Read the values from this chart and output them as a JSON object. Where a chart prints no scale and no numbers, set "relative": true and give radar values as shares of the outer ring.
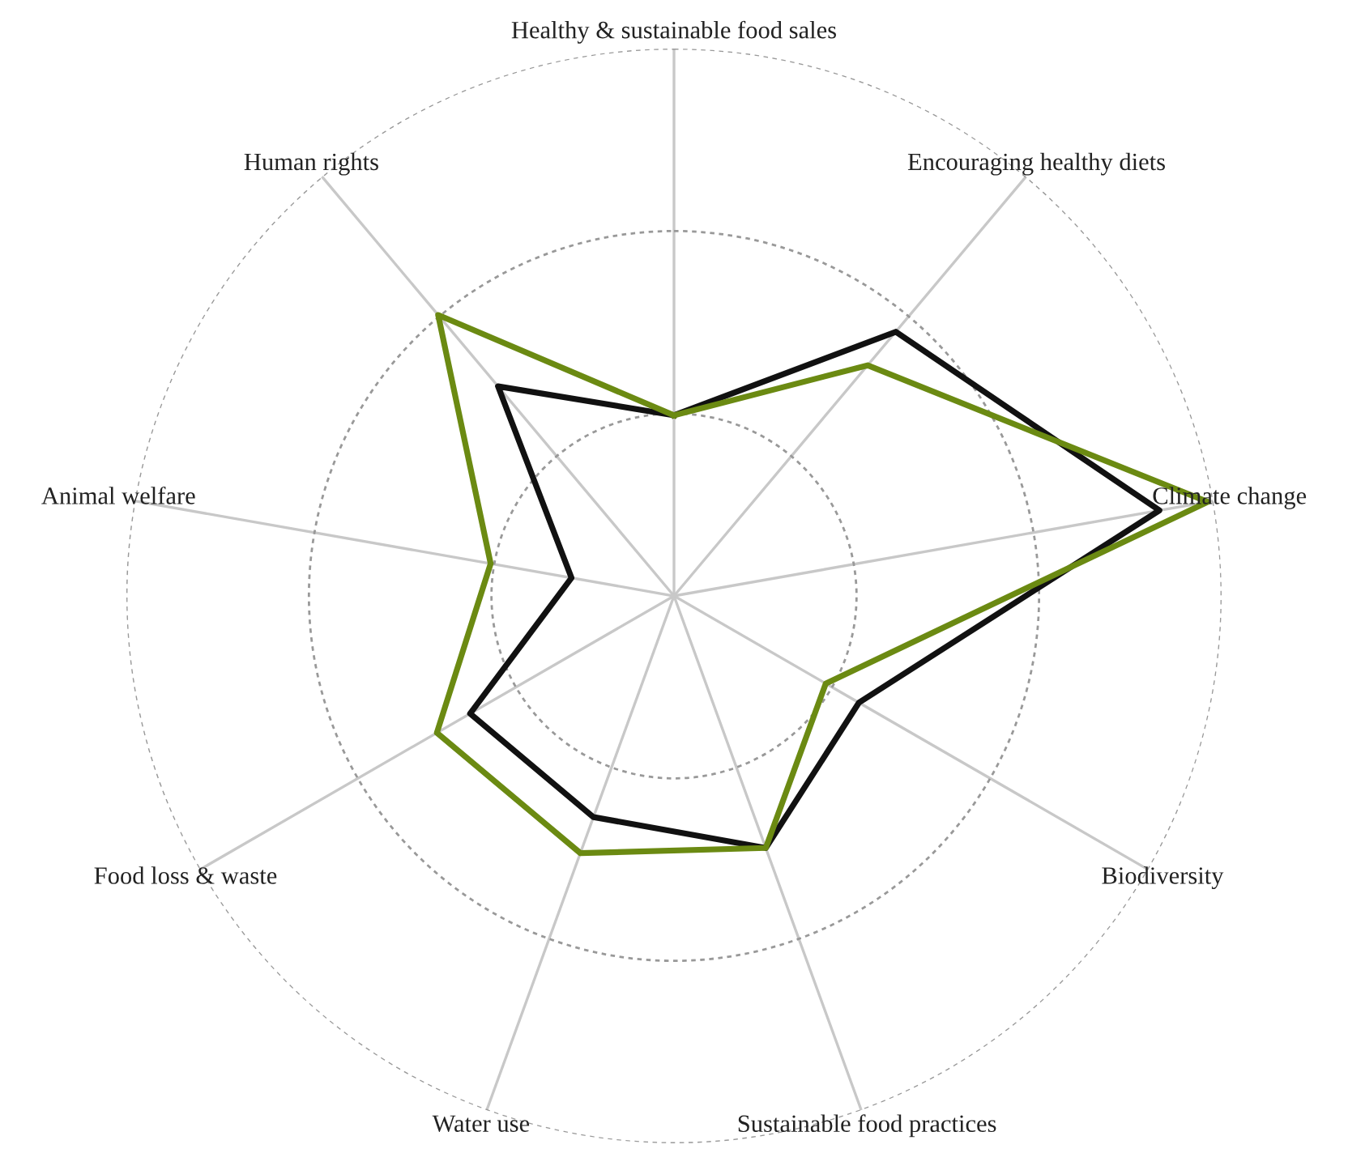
{
  "chart_data": {
    "type": "radar",
    "relative": true,
    "grid": true,
    "marker": "none",
    "line_style": "solid",
    "categories": [
      "Healthy & sustainable food sales",
      "Encouraging healthy diets",
      "Climate change",
      "Biodiversity",
      "Sustainable food practices",
      "Water use",
      "Food loss & waste",
      "Animal welfare",
      "Human rights"
    ],
    "series": [
      {
        "color": "#111111",
        "values": [
          0.33,
          0.63,
          0.9,
          0.39,
          0.49,
          0.43,
          0.43,
          0.19,
          0.5
        ]
      },
      {
        "color": "#6b8a12",
        "values": [
          0.33,
          0.55,
          0.99,
          0.32,
          0.49,
          0.5,
          0.5,
          0.34,
          0.67
        ]
      }
    ]
  }
}
